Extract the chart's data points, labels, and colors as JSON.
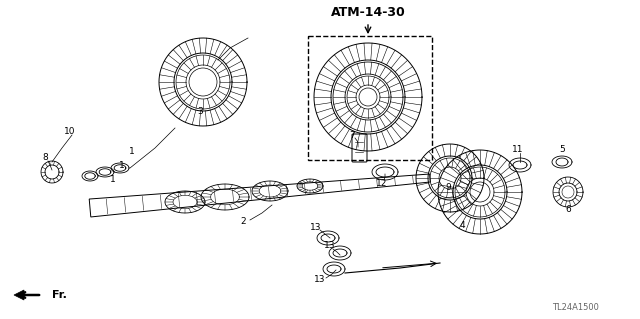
{
  "title": "ATM-14-30",
  "part_number": "TL24A1500",
  "fr_label": "Fr.",
  "bg_color": "#ffffff",
  "line_color": "#000000",
  "gray_color": "#666666"
}
